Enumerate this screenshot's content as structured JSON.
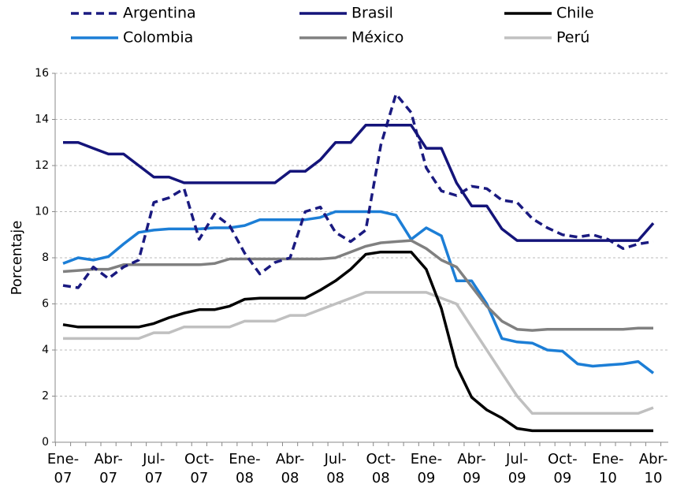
{
  "chart_data": {
    "type": "line",
    "y_label": "Porcentaje",
    "categories": [
      "Ene-07",
      null,
      null,
      "Abr-07",
      null,
      null,
      "Jul-07",
      null,
      null,
      "Oct-07",
      null,
      null,
      "Ene-08",
      null,
      null,
      "Abr-08",
      null,
      null,
      "Jul-08",
      null,
      null,
      "Oct-08",
      null,
      null,
      "Ene-09",
      null,
      null,
      "Abr-09",
      null,
      null,
      "Jul-09",
      null,
      null,
      "Oct-09",
      null,
      null,
      "Ene-10",
      null,
      null,
      "Abr-10"
    ],
    "ylim": [
      0,
      16
    ],
    "yticks": [
      0,
      2,
      4,
      6,
      8,
      10,
      12,
      14,
      16
    ],
    "grid": true,
    "series": [
      {
        "name": "Argentina",
        "color": "#1a1a80",
        "dash": true,
        "values": [
          6.8,
          6.7,
          7.6,
          7.1,
          7.6,
          7.9,
          10.4,
          10.6,
          11.0,
          8.8,
          9.9,
          9.4,
          8.2,
          7.3,
          7.8,
          8.0,
          10.0,
          10.2,
          9.1,
          8.7,
          9.2,
          12.9,
          15.1,
          14.3,
          11.9,
          10.9,
          10.7,
          11.1,
          11.0,
          10.5,
          10.4,
          9.7,
          9.3,
          9.0,
          8.9,
          9.0,
          8.8,
          8.4,
          8.6,
          8.7
        ]
      },
      {
        "name": "Brasil",
        "color": "#14147a",
        "dash": false,
        "values": [
          13.0,
          13.0,
          12.75,
          12.5,
          12.5,
          12.0,
          11.5,
          11.5,
          11.25,
          11.25,
          11.25,
          11.25,
          11.25,
          11.25,
          11.25,
          11.75,
          11.75,
          12.25,
          13.0,
          13.0,
          13.75,
          13.75,
          13.75,
          13.75,
          12.75,
          12.75,
          11.25,
          10.25,
          10.25,
          9.25,
          8.75,
          8.75,
          8.75,
          8.75,
          8.75,
          8.75,
          8.75,
          8.75,
          8.75,
          9.5
        ]
      },
      {
        "name": "Chile",
        "color": "#000000",
        "dash": false,
        "values": [
          5.1,
          5.0,
          5.0,
          5.0,
          5.0,
          5.0,
          5.15,
          5.4,
          5.6,
          5.75,
          5.75,
          5.9,
          6.2,
          6.25,
          6.25,
          6.25,
          6.25,
          6.6,
          7.0,
          7.5,
          8.15,
          8.25,
          8.25,
          8.25,
          7.5,
          5.8,
          3.3,
          1.95,
          1.4,
          1.05,
          0.6,
          0.5,
          0.5,
          0.5,
          0.5,
          0.5,
          0.5,
          0.5,
          0.5,
          0.5
        ]
      },
      {
        "name": "Colombia",
        "color": "#1c7ed6",
        "dash": false,
        "values": [
          7.75,
          8.0,
          7.9,
          8.05,
          8.6,
          9.1,
          9.2,
          9.25,
          9.25,
          9.25,
          9.3,
          9.3,
          9.4,
          9.65,
          9.65,
          9.65,
          9.65,
          9.75,
          10.0,
          10.0,
          10.0,
          10.0,
          9.85,
          8.8,
          9.3,
          8.95,
          7.0,
          7.0,
          6.0,
          4.5,
          4.35,
          4.3,
          4.0,
          3.95,
          3.4,
          3.3,
          3.35,
          3.4,
          3.5,
          3.0
        ]
      },
      {
        "name": "México",
        "color": "#808080",
        "dash": false,
        "values": [
          7.4,
          7.45,
          7.5,
          7.5,
          7.7,
          7.7,
          7.7,
          7.7,
          7.7,
          7.7,
          7.75,
          7.95,
          7.95,
          7.95,
          7.95,
          7.95,
          7.95,
          7.95,
          8.0,
          8.25,
          8.5,
          8.65,
          8.7,
          8.75,
          8.4,
          7.9,
          7.6,
          6.75,
          5.9,
          5.25,
          4.9,
          4.85,
          4.9,
          4.9,
          4.9,
          4.9,
          4.9,
          4.9,
          4.95,
          4.95
        ]
      },
      {
        "name": "Perú",
        "color": "#c0c0c0",
        "dash": false,
        "values": [
          4.5,
          4.5,
          4.5,
          4.5,
          4.5,
          4.5,
          4.75,
          4.75,
          5.0,
          5.0,
          5.0,
          5.0,
          5.25,
          5.25,
          5.25,
          5.5,
          5.5,
          5.75,
          6.0,
          6.25,
          6.5,
          6.5,
          6.5,
          6.5,
          6.5,
          6.25,
          6.0,
          5.0,
          4.0,
          3.0,
          2.0,
          1.25,
          1.25,
          1.25,
          1.25,
          1.25,
          1.25,
          1.25,
          1.25,
          1.5
        ]
      }
    ]
  }
}
